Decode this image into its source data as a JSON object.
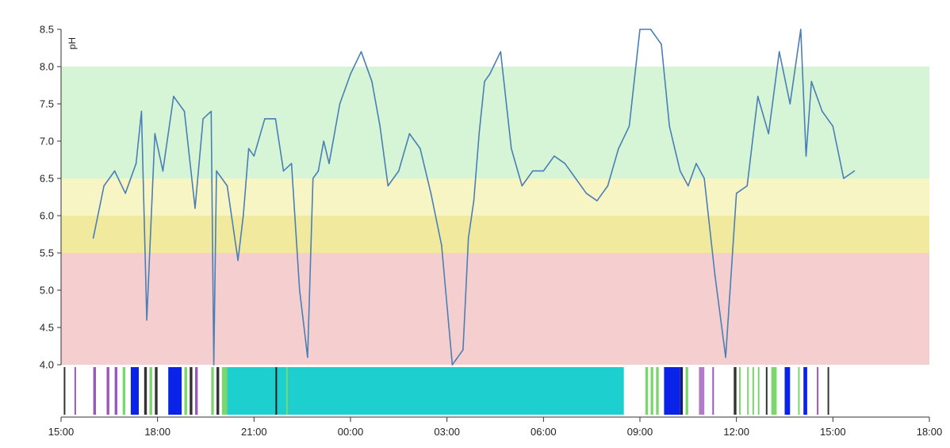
{
  "chart_data": {
    "type": "line",
    "title": "",
    "ylabel": "pH",
    "xlabel": "",
    "ylim": [
      4.0,
      8.5
    ],
    "xlim_hours": [
      0,
      27
    ],
    "y_ticks": [
      "4.0",
      "4.5",
      "5.0",
      "5.5",
      "6.0",
      "6.5",
      "7.0",
      "7.5",
      "8.0",
      "8.5"
    ],
    "x_ticks": [
      "15:00",
      "18:00",
      "21:00",
      "00:00",
      "03:00",
      "06:00",
      "09:00",
      "12:00",
      "15:00",
      "18:00"
    ],
    "bands": [
      {
        "y0": 6.5,
        "y1": 8.0,
        "color": "#d6f5d6"
      },
      {
        "y0": 6.0,
        "y1": 6.5,
        "color": "#f8f5c4"
      },
      {
        "y0": 5.5,
        "y1": 6.0,
        "color": "#f1ea9e"
      },
      {
        "y0": 4.0,
        "y1": 5.5,
        "color": "#f5cfcf"
      }
    ],
    "series": [
      {
        "color": "#4a7fb5",
        "x": [
          "16:00",
          "16:20",
          "16:40",
          "17:00",
          "17:20",
          "17:30",
          "17:40",
          "17:55",
          "18:10",
          "18:30",
          "18:50",
          "19:10",
          "19:25",
          "19:40",
          "19:45",
          "19:50",
          "20:10",
          "20:30",
          "20:40",
          "20:50",
          "21:00",
          "21:20",
          "21:40",
          "21:55",
          "22:10",
          "22:25",
          "22:40",
          "22:50",
          "23:00",
          "23:10",
          "23:20",
          "23:40",
          "00:00",
          "00:20",
          "00:40",
          "00:55",
          "01:10",
          "01:30",
          "01:50",
          "02:10",
          "02:30",
          "02:50",
          "03:10",
          "03:30",
          "03:40",
          "03:50",
          "04:00",
          "04:10",
          "04:20",
          "04:40",
          "05:00",
          "05:20",
          "05:40",
          "06:00",
          "06:20",
          "06:40",
          "07:00",
          "07:20",
          "07:40",
          "08:00",
          "08:20",
          "08:40",
          "09:00",
          "09:20",
          "09:40",
          "09:55",
          "10:05",
          "10:15",
          "10:30",
          "10:45",
          "11:00",
          "11:20",
          "11:40",
          "12:00",
          "12:20",
          "12:40",
          "13:00",
          "13:20",
          "13:40",
          "14:00",
          "14:10",
          "14:20",
          "14:40",
          "15:00",
          "15:20",
          "15:40"
        ],
        "y": [
          5.7,
          6.4,
          6.6,
          6.3,
          6.7,
          7.4,
          4.6,
          7.1,
          6.6,
          7.6,
          7.4,
          6.1,
          7.3,
          7.4,
          4.0,
          6.6,
          6.4,
          5.4,
          6.0,
          6.9,
          6.8,
          7.3,
          7.3,
          6.6,
          6.7,
          5.0,
          4.1,
          6.5,
          6.6,
          7.0,
          6.7,
          7.5,
          7.9,
          8.2,
          7.8,
          7.2,
          6.4,
          6.6,
          7.1,
          6.9,
          6.3,
          5.6,
          4.0,
          4.2,
          5.7,
          6.2,
          7.1,
          7.8,
          7.9,
          8.2,
          6.9,
          6.4,
          6.6,
          6.6,
          6.8,
          6.7,
          6.5,
          6.3,
          6.2,
          6.4,
          6.9,
          7.2,
          8.5,
          8.5,
          8.3,
          7.2,
          6.9,
          6.6,
          6.4,
          6.7,
          6.5,
          5.2,
          4.1,
          6.3,
          6.4,
          7.6,
          7.1,
          8.2,
          7.5,
          8.5,
          6.8,
          7.8,
          7.4,
          7.2,
          6.5,
          6.6
        ]
      }
    ],
    "event_bar": {
      "segments": [
        {
          "start": "16:00",
          "end": "16:05",
          "color": "#9b59b6"
        },
        {
          "start": "16:25",
          "end": "16:30",
          "color": "#9b59b6"
        },
        {
          "start": "16:40",
          "end": "16:45",
          "color": "#9b59b6"
        },
        {
          "start": "16:55",
          "end": "17:00",
          "color": "#7cd66e"
        },
        {
          "start": "17:10",
          "end": "17:25",
          "color": "#0a23e8"
        },
        {
          "start": "17:35",
          "end": "17:40",
          "color": "#333333"
        },
        {
          "start": "17:45",
          "end": "17:50",
          "color": "#7cd66e"
        },
        {
          "start": "17:55",
          "end": "18:00",
          "color": "#333333"
        },
        {
          "start": "18:20",
          "end": "18:45",
          "color": "#0a23e8"
        },
        {
          "start": "18:50",
          "end": "18:55",
          "color": "#7cd66e"
        },
        {
          "start": "19:00",
          "end": "19:05",
          "color": "#333333"
        },
        {
          "start": "19:10",
          "end": "19:15",
          "color": "#9b59b6"
        },
        {
          "start": "19:40",
          "end": "19:45",
          "color": "#7cd66e"
        },
        {
          "start": "19:50",
          "end": "19:55",
          "color": "#333333"
        },
        {
          "start": "20:00",
          "end": "20:10",
          "color": "#7cd66e"
        },
        {
          "start": "20:10",
          "end": "08:30",
          "color": "#1ecfcf"
        },
        {
          "start": "21:40",
          "end": "21:43",
          "color": "#222222"
        },
        {
          "start": "22:00",
          "end": "22:03",
          "color": "#7cd66e"
        },
        {
          "start": "09:10",
          "end": "09:15",
          "color": "#7cd66e"
        },
        {
          "start": "09:20",
          "end": "09:25",
          "color": "#7cd66e"
        },
        {
          "start": "09:30",
          "end": "09:35",
          "color": "#7cd66e"
        },
        {
          "start": "09:45",
          "end": "10:15",
          "color": "#0a23e8"
        },
        {
          "start": "10:15",
          "end": "10:20",
          "color": "#1a1a6e"
        },
        {
          "start": "10:25",
          "end": "10:30",
          "color": "#7cd66e"
        },
        {
          "start": "10:50",
          "end": "11:00",
          "color": "#b07cc6"
        },
        {
          "start": "11:15",
          "end": "11:18",
          "color": "#9b59b6"
        },
        {
          "start": "11:55",
          "end": "12:00",
          "color": "#333333"
        },
        {
          "start": "12:05",
          "end": "12:08",
          "color": "#7cd66e"
        },
        {
          "start": "12:20",
          "end": "12:23",
          "color": "#7cd66e"
        },
        {
          "start": "12:30",
          "end": "12:33",
          "color": "#7cd66e"
        },
        {
          "start": "12:40",
          "end": "12:43",
          "color": "#7cd66e"
        },
        {
          "start": "12:55",
          "end": "12:58",
          "color": "#333333"
        },
        {
          "start": "13:05",
          "end": "13:15",
          "color": "#7cd66e"
        },
        {
          "start": "13:30",
          "end": "13:40",
          "color": "#0a23e8"
        },
        {
          "start": "13:55",
          "end": "13:58",
          "color": "#7cd66e"
        },
        {
          "start": "14:05",
          "end": "14:12",
          "color": "#0a23e8"
        },
        {
          "start": "14:30",
          "end": "14:33",
          "color": "#9b59b6"
        },
        {
          "start": "14:50",
          "end": "14:53",
          "color": "#333333"
        },
        {
          "start": "15:05",
          "end": "15:08",
          "color": "#333333"
        },
        {
          "start": "15:25",
          "end": "15:28",
          "color": "#9b59b6"
        }
      ]
    }
  }
}
